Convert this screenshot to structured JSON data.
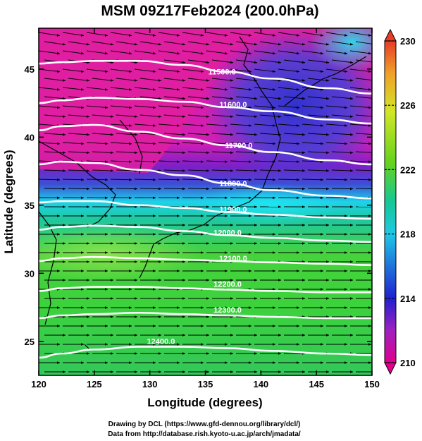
{
  "chart_data": {
    "type": "heatmap",
    "title": "MSM 09Z17Feb2024 (200.0hPa)",
    "xlabel": "Longitude (degrees)",
    "ylabel": "Latitude  (degrees)",
    "xlim": [
      120,
      150
    ],
    "ylim": [
      22.5,
      48
    ],
    "x_ticks": [
      120,
      125,
      130,
      135,
      140,
      145,
      150
    ],
    "x_tick_labels": [
      "120",
      "125",
      "130",
      "135",
      "140",
      "145",
      "150"
    ],
    "y_ticks": [
      25,
      30,
      35,
      40,
      45
    ],
    "y_tick_labels": [
      "25",
      "30",
      "35",
      "40",
      "45"
    ],
    "color_variable_range": [
      210,
      230
    ],
    "colorbar_ticks": [
      210,
      214,
      218,
      222,
      226,
      230
    ],
    "colorbar_labels": [
      "210",
      "214",
      "218",
      "222",
      "226",
      "230"
    ],
    "colormap": [
      "#e0008c",
      "#a020c0",
      "#2020d0",
      "#1ec8e6",
      "#14c896",
      "#64d21e",
      "#d2e628",
      "#f0a028",
      "#e63c28"
    ],
    "height_contours": [
      {
        "value": 11500,
        "label": "11500.0",
        "label_at": [
          136.5,
          44.6
        ],
        "lats": [
          45.4,
          45.5,
          45.6,
          45.6,
          45.3,
          44.8,
          44.3,
          43.6,
          43.2
        ]
      },
      {
        "value": 11600,
        "label": "11600.0",
        "label_at": [
          137.5,
          42.2
        ],
        "lats": [
          42.5,
          42.7,
          42.9,
          42.8,
          42.6,
          42.2,
          41.9,
          41.3,
          41.0
        ]
      },
      {
        "value": 11700,
        "label": "11700.0",
        "label_at": [
          138.0,
          39.2
        ],
        "lats": [
          40.5,
          40.8,
          40.9,
          40.4,
          39.9,
          39.4,
          38.9,
          38.3,
          38.0
        ]
      },
      {
        "value": 11800,
        "label": "11800.0",
        "label_at": [
          137.5,
          36.4
        ],
        "lats": [
          38.0,
          38.2,
          38.1,
          37.6,
          37.2,
          36.6,
          36.1,
          35.7,
          35.5
        ]
      },
      {
        "value": 11900,
        "label": "11900.0",
        "label_at": [
          137.5,
          34.5
        ],
        "lats": [
          35.2,
          35.3,
          35.3,
          35.0,
          34.8,
          34.5,
          34.3,
          34.1,
          34.0
        ]
      },
      {
        "value": 12000,
        "label": "12000.0",
        "label_at": [
          137.0,
          32.8
        ],
        "lats": [
          33.2,
          33.4,
          33.5,
          33.4,
          33.1,
          32.8,
          32.6,
          32.4,
          32.3
        ]
      },
      {
        "value": 12100,
        "label": "12100.0",
        "label_at": [
          137.5,
          30.9
        ],
        "lats": [
          30.9,
          31.1,
          31.2,
          31.1,
          31.0,
          30.9,
          30.8,
          30.7,
          30.6
        ]
      },
      {
        "value": 12200,
        "label": "12200.0",
        "label_at": [
          137.0,
          29.0
        ],
        "lats": [
          28.7,
          28.9,
          29.0,
          29.0,
          28.9,
          28.8,
          28.7,
          28.6,
          28.6
        ]
      },
      {
        "value": 12300,
        "label": "12300.0",
        "label_at": [
          137.0,
          27.1
        ],
        "lats": [
          26.7,
          26.9,
          27.0,
          27.1,
          27.0,
          26.9,
          26.8,
          26.7,
          26.7
        ]
      },
      {
        "value": 12400,
        "label": "12400.0",
        "label_at": [
          131.0,
          24.8
        ],
        "lats": [
          23.8,
          24.1,
          24.4,
          24.6,
          24.6,
          24.5,
          24.3,
          24.1,
          24.0
        ]
      }
    ],
    "contour_lons": [
      120,
      122,
      125,
      129,
      133,
      137,
      141,
      146,
      150
    ],
    "wind_vectors": "streamline arrows, westerly, every row"
  },
  "credits": {
    "line1": "Drawing by DCL (https://www.gfd-dennou.org/library/dcl/)",
    "line2": "Data from http://database.rish.kyoto-u.ac.jp/arch/jmadata/"
  }
}
